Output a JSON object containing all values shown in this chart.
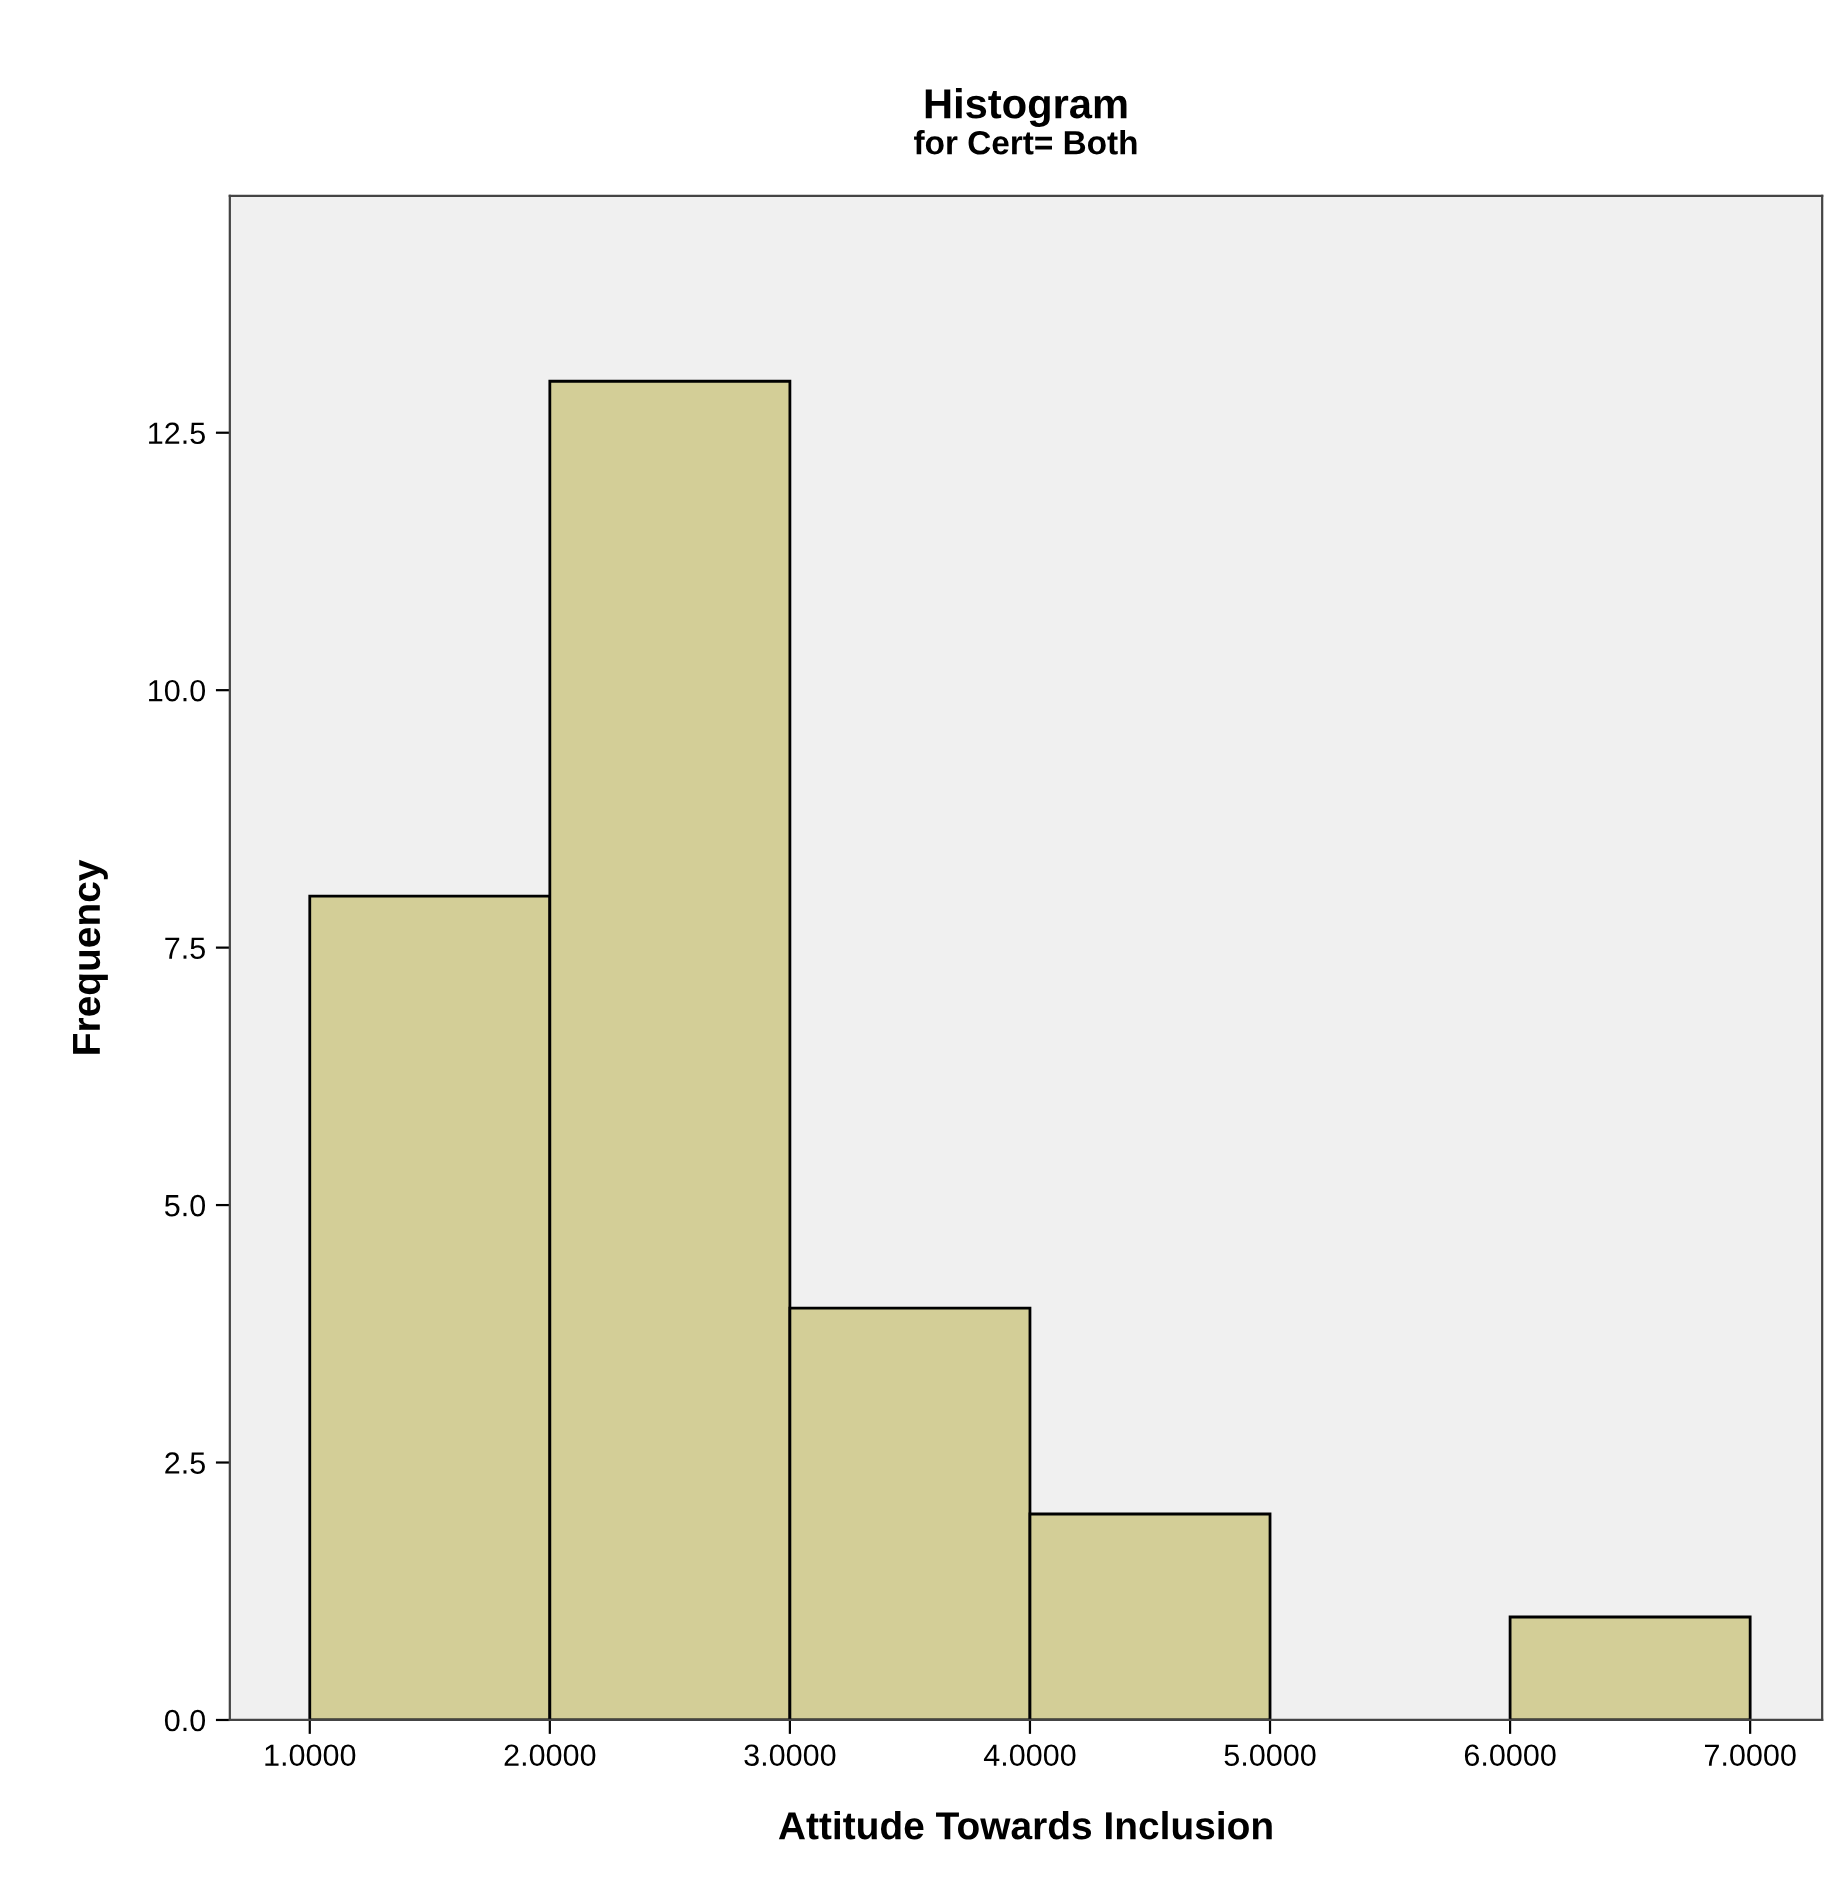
{
  "chart_data": {
    "type": "histogram",
    "title": "Histogram",
    "subtitle": "for Cert= Both",
    "xlabel": "Attitude Towards Inclusion",
    "ylabel": "Frequency",
    "bins": [
      1,
      2,
      3,
      4,
      5,
      6,
      7
    ],
    "values": [
      8,
      13,
      4,
      2,
      0,
      1
    ],
    "color": "#d3ce97",
    "xlim": [
      0.667,
      7.3
    ],
    "ylim": [
      0,
      14.8
    ],
    "xticks": [
      {
        "value": 1,
        "label": "1.0000"
      },
      {
        "value": 2,
        "label": "2.0000"
      },
      {
        "value": 3,
        "label": "3.0000"
      },
      {
        "value": 4,
        "label": "4.0000"
      },
      {
        "value": 5,
        "label": "5.0000"
      },
      {
        "value": 6,
        "label": "6.0000"
      },
      {
        "value": 7,
        "label": "7.0000"
      }
    ],
    "yticks": [
      {
        "value": 0,
        "label": "0.0"
      },
      {
        "value": 2.5,
        "label": "2.5"
      },
      {
        "value": 5,
        "label": "5.0"
      },
      {
        "value": 7.5,
        "label": "7.5"
      },
      {
        "value": 10,
        "label": "10.0"
      },
      {
        "value": 12.5,
        "label": "12.5"
      }
    ],
    "grid": false
  }
}
